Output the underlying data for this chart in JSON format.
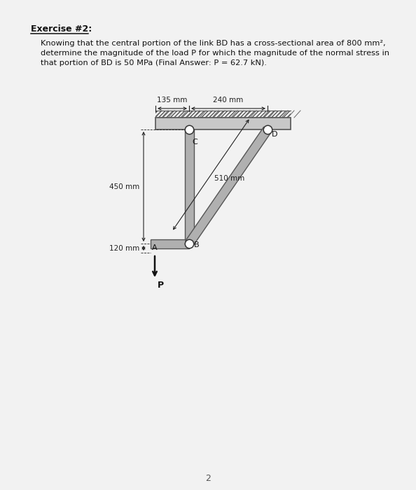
{
  "title": "Exercise #2:",
  "body_text_line1": "Knowing that the central portion of the link BD has a cross-sectional area of 800 mm²,",
  "body_text_line2": "determine the magnitude of the load P for which the magnitude of the normal stress in",
  "body_text_line3": "that portion of BD is 50 MPa (Final Answer: P = 62.7 kN).",
  "page_number": "2",
  "bg_color": "#f2f2f2",
  "dim_135": "135 mm",
  "dim_240": "240 mm",
  "dim_450": "450 mm",
  "dim_510": "510 mm",
  "dim_120": "120 mm",
  "label_A": "A",
  "label_B": "B",
  "label_C": "C",
  "label_D": "D",
  "label_P": "P",
  "struct_fill": "#b0b0b0",
  "struct_edge": "#555555",
  "wall_fill": "#c8c8c8",
  "wall_edge": "#555555",
  "text_color": "#111111",
  "dim_color": "#222222",
  "arrow_color": "#111111"
}
